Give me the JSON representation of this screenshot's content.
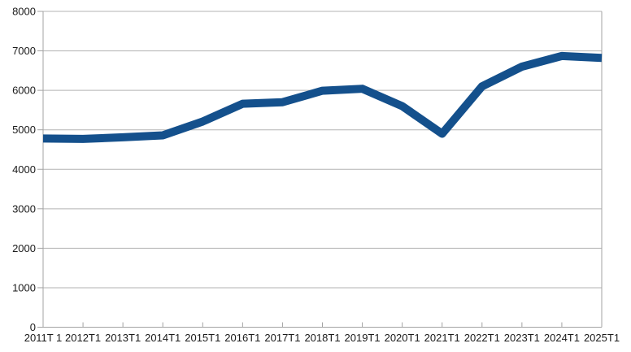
{
  "chart_data": {
    "type": "line",
    "title": "",
    "xlabel": "",
    "ylabel": "",
    "categories": [
      "2011T 1",
      "2012T1",
      "2013T1",
      "2014T1",
      "2015T1",
      "2016T1",
      "2017T1",
      "2018T1",
      "2019T1",
      "2020T1",
      "2021T1",
      "2022T1",
      "2023T1",
      "2024T1",
      "2025T1"
    ],
    "series": [
      {
        "name": "",
        "values": [
          4780,
          4770,
          4810,
          4860,
          5210,
          5660,
          5700,
          5990,
          6040,
          5600,
          4900,
          6100,
          6600,
          6870,
          6820
        ]
      }
    ],
    "ylim": [
      0,
      8000
    ],
    "y_ticks": [
      0,
      1000,
      2000,
      3000,
      4000,
      5000,
      6000,
      7000,
      8000
    ],
    "y_tick_labels": [
      "0",
      "1000",
      "2000",
      "3000",
      "4000",
      "5000",
      "6000",
      "7000",
      "8000"
    ],
    "grid": "horizontal",
    "legend": "none",
    "style": {
      "background_color": "#ffffff",
      "line_color": "#14508C",
      "line_width": 10,
      "grid_color": "#b3b3b3",
      "axis_color": "#a3a3a3",
      "text_color": "#1a1a1a"
    }
  }
}
